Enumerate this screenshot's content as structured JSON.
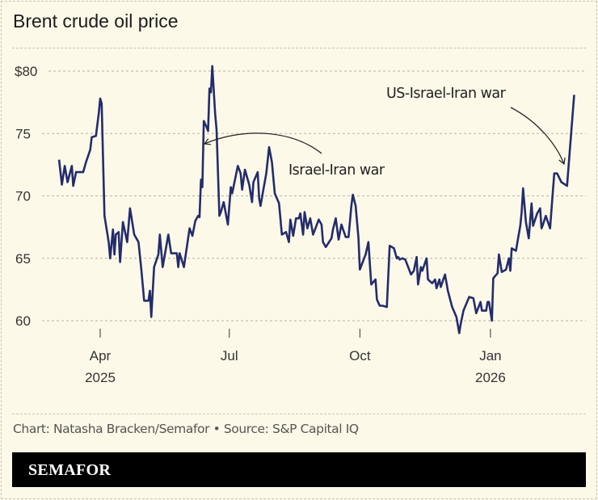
{
  "title": "Brent crude oil price",
  "footer": "Chart: Natasha Bracken/Semafor • Source: S&P Capital IQ",
  "brand": "SEMAFOR",
  "colors": {
    "line": "#242c6b",
    "background": "#fcf9e9",
    "grid": "#b8b4a4",
    "brand_bar": "#000000"
  },
  "chart_data": {
    "type": "line",
    "title": "Brent crude oil price",
    "xlabel": "",
    "ylabel": "",
    "ylim": [
      60,
      80
    ],
    "yticks": [
      {
        "value": 80,
        "label": "$80"
      },
      {
        "value": 75,
        "label": "75"
      },
      {
        "value": 70,
        "label": "70"
      },
      {
        "value": 65,
        "label": "65"
      },
      {
        "value": 60,
        "label": "60"
      }
    ],
    "xticks": [
      {
        "date": "2025-04-01",
        "label": "Apr",
        "year": "2025"
      },
      {
        "date": "2025-07-01",
        "label": "Jul",
        "year": ""
      },
      {
        "date": "2025-10-01",
        "label": "Oct",
        "year": ""
      },
      {
        "date": "2026-01-01",
        "label": "Jan",
        "year": "2026"
      }
    ],
    "grid": "horizontal dashed",
    "annotations": [
      {
        "text": "Israel-Iran war",
        "date": "2025-06-13"
      },
      {
        "text": "US-Israel-Iran war",
        "date": "2026-02-24"
      }
    ],
    "series": [
      {
        "x": [
          "2025-03-03",
          "2025-03-05",
          "2025-03-07",
          "2025-03-09",
          "2025-03-12",
          "2025-03-13",
          "2025-03-15",
          "2025-03-20",
          "2025-03-22",
          "2025-03-25",
          "2025-03-26",
          "2025-03-29",
          "2025-03-31",
          "2025-04-01",
          "2025-04-02",
          "2025-04-04",
          "2025-04-07",
          "2025-04-08",
          "2025-04-10",
          "2025-04-11",
          "2025-04-12",
          "2025-04-14",
          "2025-04-15",
          "2025-04-17",
          "2025-04-20",
          "2025-04-22",
          "2025-04-25",
          "2025-04-28",
          "2025-04-30",
          "2025-05-02",
          "2025-05-05",
          "2025-05-06",
          "2025-05-07",
          "2025-05-09",
          "2025-05-12",
          "2025-05-13",
          "2025-05-15",
          "2025-05-19",
          "2025-05-21",
          "2025-05-25",
          "2025-05-26",
          "2025-05-27",
          "2025-05-30",
          "2025-06-03",
          "2025-06-05",
          "2025-06-07",
          "2025-06-09",
          "2025-06-10",
          "2025-06-11",
          "2025-06-12",
          "2025-06-13",
          "2025-06-15",
          "2025-06-16",
          "2025-06-17",
          "2025-06-18",
          "2025-06-19",
          "2025-06-21",
          "2025-06-22",
          "2025-06-24",
          "2025-06-25",
          "2025-06-27",
          "2025-06-30",
          "2025-07-02",
          "2025-07-03",
          "2025-07-07",
          "2025-07-09",
          "2025-07-10",
          "2025-07-12",
          "2025-07-15",
          "2025-07-17",
          "2025-07-18",
          "2025-07-21",
          "2025-07-22",
          "2025-07-23",
          "2025-07-25",
          "2025-07-27",
          "2025-07-29",
          "2025-07-31",
          "2025-08-02",
          "2025-08-05",
          "2025-08-07",
          "2025-08-10",
          "2025-08-12",
          "2025-08-13",
          "2025-08-15",
          "2025-08-17",
          "2025-08-19",
          "2025-08-20",
          "2025-08-22",
          "2025-08-23",
          "2025-08-25",
          "2025-08-27",
          "2025-08-29",
          "2025-09-02",
          "2025-09-04",
          "2025-09-05",
          "2025-09-07",
          "2025-09-11",
          "2025-09-12",
          "2025-09-14",
          "2025-09-16",
          "2025-09-18",
          "2025-09-21",
          "2025-09-23",
          "2025-09-25",
          "2025-09-26",
          "2025-09-28",
          "2025-09-30",
          "2025-10-01",
          "2025-10-04",
          "2025-10-05",
          "2025-10-07",
          "2025-10-09",
          "2025-10-12",
          "2025-10-13",
          "2025-10-15",
          "2025-10-17",
          "2025-10-20",
          "2025-10-22",
          "2025-10-25",
          "2025-10-27",
          "2025-10-28",
          "2025-10-29",
          "2025-10-31",
          "2025-11-02",
          "2025-11-04",
          "2025-11-06",
          "2025-11-08",
          "2025-11-10",
          "2025-11-11",
          "2025-11-13",
          "2025-11-14",
          "2025-11-17",
          "2025-11-18",
          "2025-11-21",
          "2025-11-23",
          "2025-11-24",
          "2025-11-26",
          "2025-11-27",
          "2025-11-30",
          "2025-12-02",
          "2025-12-05",
          "2025-12-08",
          "2025-12-10",
          "2025-12-11",
          "2025-12-13",
          "2025-12-17",
          "2025-12-20",
          "2025-12-22",
          "2025-12-25",
          "2025-12-26",
          "2025-12-29",
          "2025-12-30",
          "2025-12-31",
          "2026-01-02",
          "2026-01-03",
          "2026-01-06",
          "2026-01-07",
          "2026-01-09",
          "2026-01-12",
          "2026-01-14",
          "2026-01-15",
          "2026-01-16",
          "2026-01-19",
          "2026-01-20",
          "2026-01-22",
          "2026-01-23",
          "2026-01-24",
          "2026-01-26",
          "2026-01-28",
          "2026-01-30",
          "2026-01-31",
          "2026-02-03",
          "2026-02-05",
          "2026-02-06",
          "2026-02-07",
          "2026-02-09",
          "2026-02-12",
          "2026-02-14",
          "2026-02-15",
          "2026-02-17",
          "2026-02-20",
          "2026-02-24",
          "2026-03-01"
        ],
        "y": [
          72.9,
          70.9,
          72.4,
          71.1,
          72.4,
          70.8,
          71.9,
          71.9,
          72.7,
          73.7,
          74.7,
          74.8,
          76.6,
          77.8,
          77.4,
          68.4,
          66.3,
          65.0,
          67.3,
          65.3,
          66.9,
          67.1,
          64.7,
          67.9,
          66.3,
          69.0,
          66.9,
          66.3,
          64.1,
          61.6,
          61.6,
          62.4,
          60.3,
          64.3,
          65.3,
          66.9,
          64.3,
          66.9,
          65.4,
          65.4,
          64.3,
          65.4,
          64.3,
          67.4,
          66.8,
          68.0,
          68.4,
          68.3,
          71.3,
          70.7,
          76.0,
          75.5,
          75.2,
          78.6,
          78.3,
          80.4,
          76.6,
          75.3,
          68.4,
          68.7,
          69.5,
          67.7,
          70.7,
          70.2,
          72.4,
          71.8,
          70.5,
          72.1,
          70.9,
          69.5,
          71.1,
          71.9,
          69.8,
          69.2,
          70.5,
          71.8,
          73.9,
          72.7,
          70.2,
          69.4,
          66.9,
          67.1,
          66.3,
          68.1,
          66.8,
          68.2,
          68.2,
          68.6,
          66.9,
          68.7,
          67.4,
          68.2,
          66.9,
          68.1,
          67.7,
          66.3,
          65.9,
          66.6,
          67.3,
          68.2,
          66.5,
          67.7,
          66.7,
          66.7,
          69.2,
          70.1,
          69.2,
          66.6,
          64.1,
          65.0,
          65.3,
          66.3,
          62.9,
          63.3,
          61.7,
          61.2,
          61.2,
          61.1,
          66.0,
          65.8,
          65.0,
          65.1,
          64.9,
          65.0,
          64.9,
          64.3,
          63.7,
          64.0,
          65.1,
          62.9,
          64.3,
          64.0,
          65.0,
          63.3,
          63.0,
          63.3,
          62.6,
          63.3,
          62.7,
          63.7,
          62.4,
          61.1,
          60.3,
          59.0,
          59.7,
          60.8,
          61.9,
          61.8,
          60.6,
          61.5,
          60.8,
          60.8,
          61.5,
          61.5,
          60.0,
          63.4,
          63.8,
          65.3,
          63.9,
          64.1,
          65.0,
          64.0,
          65.8,
          65.6,
          66.3,
          67.6,
          68.7,
          70.6,
          67.9,
          66.6,
          69.4,
          67.6,
          68.6,
          69.0,
          67.4,
          67.7,
          68.4,
          67.4,
          70.4,
          71.8,
          71.8,
          71.1,
          70.8,
          78.1
        ]
      }
    ]
  }
}
